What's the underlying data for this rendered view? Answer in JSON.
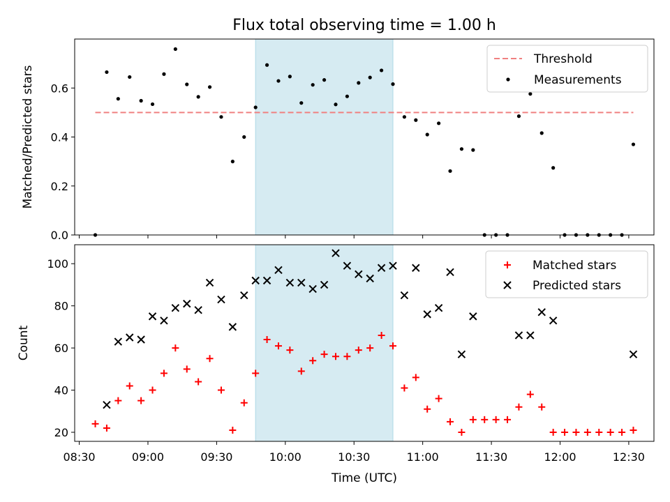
{
  "chart_data": {
    "type": "scatter",
    "title": "Flux total observing time = 1.00 h",
    "xlabel": "Time (UTC)",
    "x_ticks": [
      "08:30",
      "09:00",
      "09:30",
      "10:00",
      "10:30",
      "11:00",
      "11:30",
      "12:00",
      "12:30"
    ],
    "xlim": [
      "08:28",
      "12:41"
    ],
    "highlight_span": {
      "start": "09:47",
      "end": "10:47",
      "color": "#add8e6"
    },
    "panels": [
      {
        "ylabel": "Matched/Predicted stars",
        "ylim": [
          0,
          0.8
        ],
        "y_ticks": [
          "0.0",
          "0.2",
          "0.4",
          "0.6"
        ],
        "y_tick_values": [
          0,
          0.2,
          0.4,
          0.6
        ],
        "legend_placement": "upper right",
        "threshold": {
          "name": "Threshold",
          "value": 0.5,
          "start": "08:37",
          "end": "12:32",
          "color": "#f08080"
        },
        "series": [
          {
            "name": "Measurements",
            "color": "#000000",
            "marker": "dot",
            "x": [
              "08:37",
              "08:42",
              "08:47",
              "08:52",
              "08:57",
              "09:02",
              "09:07",
              "09:12",
              "09:17",
              "09:22",
              "09:27",
              "09:32",
              "09:37",
              "09:42",
              "09:47",
              "09:52",
              "09:57",
              "10:02",
              "10:07",
              "10:12",
              "10:17",
              "10:22",
              "10:27",
              "10:32",
              "10:37",
              "10:42",
              "10:47",
              "10:52",
              "10:57",
              "11:02",
              "11:07",
              "11:12",
              "11:17",
              "11:22",
              "11:27",
              "11:32",
              "11:37",
              "11:42",
              "11:47",
              "11:52",
              "11:57",
              "12:02",
              "12:07",
              "12:12",
              "12:17",
              "12:22",
              "12:27",
              "12:32"
            ],
            "y": [
              0.0,
              0.665,
              0.556,
              0.645,
              0.548,
              0.534,
              0.657,
              0.759,
              0.615,
              0.564,
              0.604,
              0.482,
              0.3,
              0.4,
              0.521,
              0.694,
              0.629,
              0.647,
              0.539,
              0.613,
              0.633,
              0.533,
              0.566,
              0.621,
              0.643,
              0.672,
              0.616,
              0.482,
              0.469,
              0.41,
              0.456,
              0.261,
              0.351,
              0.347,
              0.0,
              0.0,
              0.0,
              0.485,
              0.576,
              0.416,
              0.274,
              0.0,
              0.0,
              0.0,
              0.0,
              0.0,
              0.0,
              0.37
            ]
          }
        ]
      },
      {
        "ylabel": "Count",
        "ylim": [
          15.7,
          109
        ],
        "y_ticks": [
          "20",
          "40",
          "60",
          "80",
          "100"
        ],
        "y_tick_values": [
          20,
          40,
          60,
          80,
          100
        ],
        "legend_placement": "upper right",
        "series": [
          {
            "name": "Matched stars",
            "color": "#ff0000",
            "marker": "plus",
            "x": [
              "08:37",
              "08:42",
              "08:47",
              "08:52",
              "08:57",
              "09:02",
              "09:07",
              "09:12",
              "09:17",
              "09:22",
              "09:27",
              "09:32",
              "09:37",
              "09:42",
              "09:47",
              "09:52",
              "09:57",
              "10:02",
              "10:07",
              "10:12",
              "10:17",
              "10:22",
              "10:27",
              "10:32",
              "10:37",
              "10:42",
              "10:47",
              "10:52",
              "10:57",
              "11:02",
              "11:07",
              "11:12",
              "11:17",
              "11:22",
              "11:27",
              "11:32",
              "11:37",
              "11:42",
              "11:47",
              "11:52",
              "11:57",
              "12:02",
              "12:07",
              "12:12",
              "12:17",
              "12:22",
              "12:27",
              "12:32"
            ],
            "y": [
              24,
              22,
              35,
              42,
              35,
              40,
              48,
              60,
              50,
              44,
              55,
              40,
              21,
              34,
              48,
              64,
              61,
              59,
              49,
              54,
              57,
              56,
              56,
              59,
              60,
              66,
              61,
              41,
              46,
              31,
              36,
              25,
              20,
              26,
              26,
              26,
              26,
              32,
              38,
              32,
              20,
              20,
              20,
              20,
              20,
              20,
              20,
              21
            ]
          },
          {
            "name": "Predicted stars",
            "color": "#000000",
            "marker": "x",
            "x": [
              "08:42",
              "08:47",
              "08:52",
              "08:57",
              "09:02",
              "09:07",
              "09:12",
              "09:17",
              "09:22",
              "09:27",
              "09:32",
              "09:37",
              "09:42",
              "09:47",
              "09:52",
              "09:57",
              "10:02",
              "10:07",
              "10:12",
              "10:17",
              "10:22",
              "10:27",
              "10:32",
              "10:37",
              "10:42",
              "10:47",
              "10:52",
              "10:57",
              "11:02",
              "11:07",
              "11:12",
              "11:17",
              "11:22",
              "11:42",
              "11:47",
              "11:52",
              "11:57",
              "12:32"
            ],
            "y": [
              33,
              63,
              65,
              64,
              75,
              73,
              79,
              81,
              78,
              91,
              83,
              70,
              85,
              92,
              92,
              97,
              91,
              91,
              88,
              90,
              105,
              99,
              95,
              93,
              98,
              99,
              85,
              98,
              76,
              79,
              96,
              57,
              75,
              66,
              66,
              77,
              73,
              57
            ]
          }
        ]
      }
    ]
  }
}
